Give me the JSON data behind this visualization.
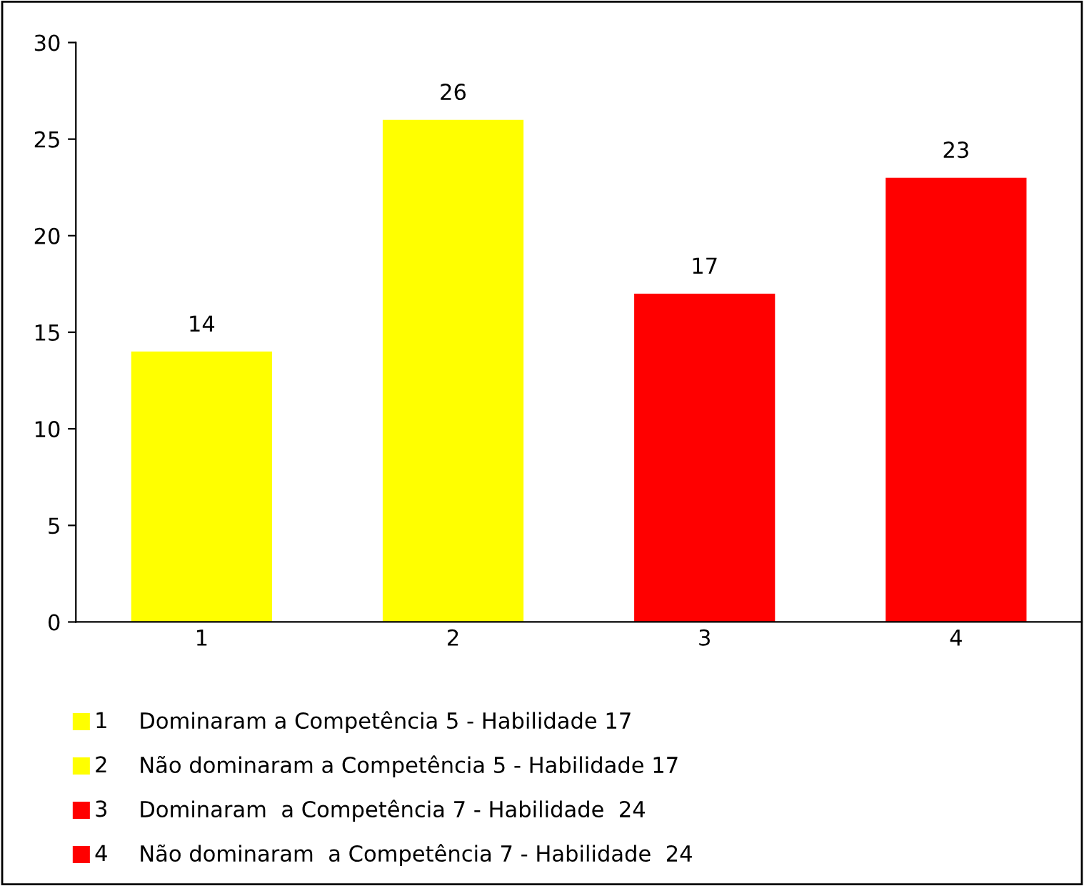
{
  "chart_data": {
    "type": "bar",
    "stacked": true,
    "categories": [
      "1",
      "2",
      "3",
      "4"
    ],
    "series": [
      {
        "name": "Dominaram a Competência 5 - Habilidade 17",
        "color": "#ffff00",
        "values": [
          14,
          null,
          null,
          null
        ]
      },
      {
        "name": "Não dominaram a Competência 5 - Habilidade 17",
        "color": "#ffff00",
        "values": [
          null,
          26,
          null,
          null
        ]
      },
      {
        "name": "Dominaram  a Competência 7 - Habilidade  24",
        "color": "#ff0000",
        "values": [
          null,
          null,
          17,
          null
        ]
      },
      {
        "name": "Não dominaram  a Competência 7 - Habilidade  24",
        "color": "#ff0000",
        "values": [
          null,
          null,
          null,
          23
        ]
      }
    ],
    "ylim": [
      0,
      30
    ],
    "yticks": [
      0,
      5,
      10,
      15,
      20,
      25,
      30
    ],
    "grid": false,
    "legend": "bottom",
    "data_labels": true
  }
}
